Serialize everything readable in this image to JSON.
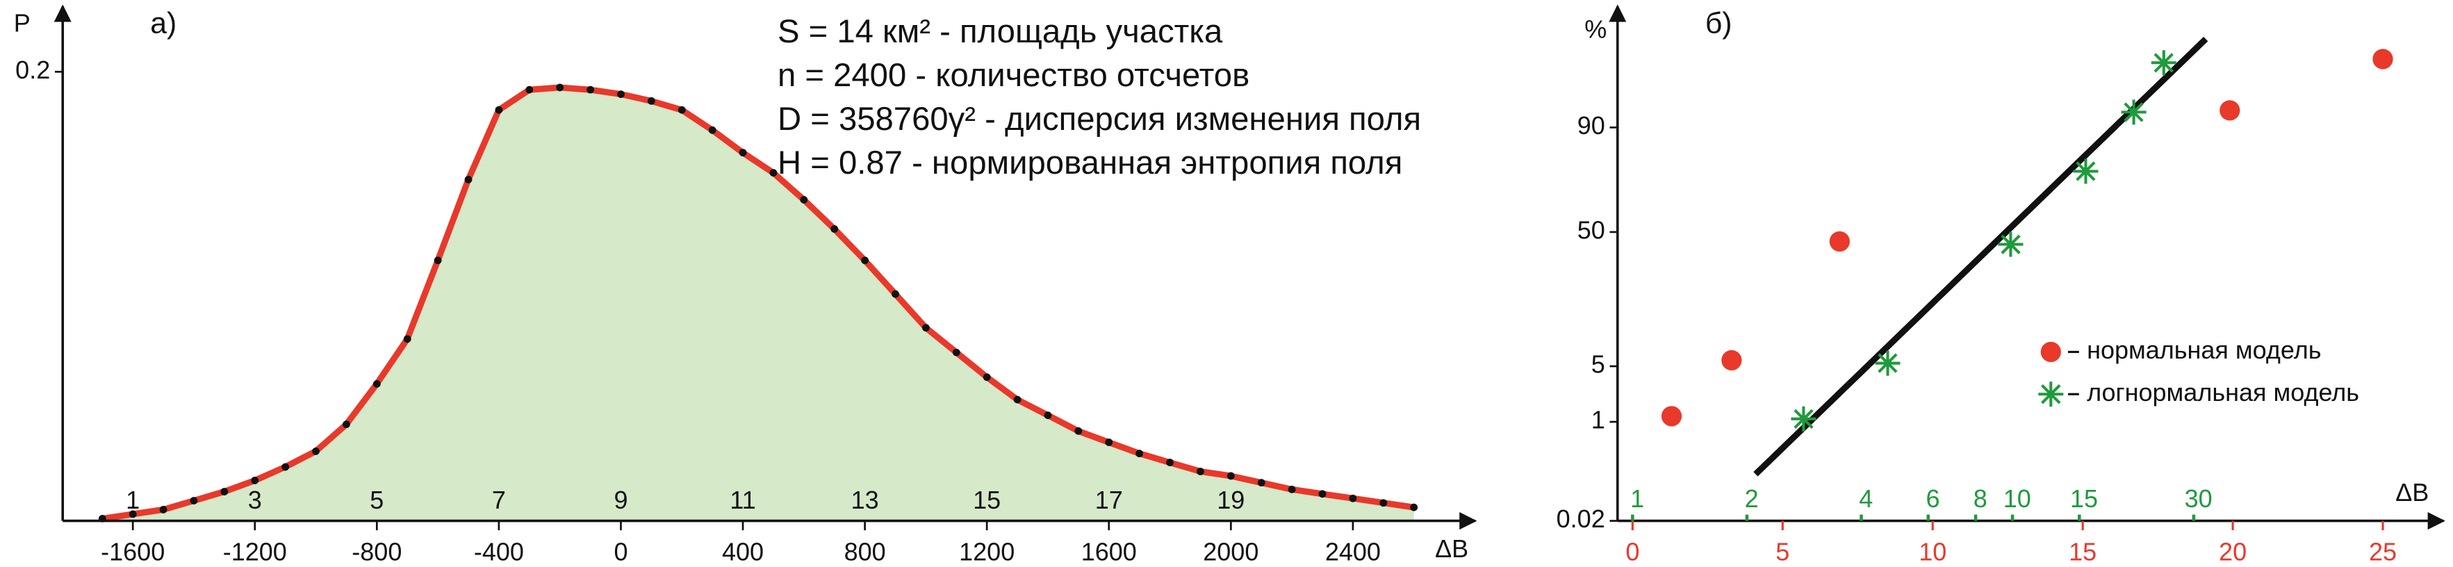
{
  "chart_data": [
    {
      "type": "area-line",
      "label": "а)",
      "ylabel": "P",
      "xlabel": "ΔB",
      "x": [
        -1700,
        -1600,
        -1500,
        -1400,
        -1300,
        -1200,
        -1100,
        -1000,
        -900,
        -800,
        -700,
        -600,
        -500,
        -400,
        -300,
        -200,
        -100,
        0,
        100,
        200,
        300,
        400,
        500,
        600,
        700,
        800,
        900,
        1000,
        1100,
        1200,
        1300,
        1400,
        1500,
        1600,
        1700,
        1800,
        1900,
        2000,
        2100,
        2200,
        2300,
        2400,
        2500,
        2600
      ],
      "series": [
        {
          "color": "#e8392b",
          "fill": "#d6e9c9",
          "values": [
            0.001,
            0.003,
            0.005,
            0.009,
            0.013,
            0.018,
            0.024,
            0.031,
            0.043,
            0.061,
            0.081,
            0.116,
            0.152,
            0.183,
            0.192,
            0.193,
            0.192,
            0.19,
            0.187,
            0.183,
            0.174,
            0.164,
            0.155,
            0.143,
            0.13,
            0.116,
            0.101,
            0.086,
            0.075,
            0.064,
            0.054,
            0.047,
            0.04,
            0.035,
            0.03,
            0.026,
            0.022,
            0.02,
            0.017,
            0.014,
            0.012,
            0.01,
            0.008,
            0.006
          ]
        }
      ],
      "xlim": [
        -1830,
        2760
      ],
      "ylim": [
        0,
        0.225
      ],
      "xticks": [
        -1600,
        -1200,
        -800,
        -400,
        0,
        400,
        800,
        1200,
        1600,
        2000,
        2400
      ],
      "yticks": [
        0.2
      ],
      "classes": [
        {
          "value": -1600,
          "label": "1"
        },
        {
          "value": -1200,
          "label": "3"
        },
        {
          "value": -800,
          "label": "5"
        },
        {
          "value": -400,
          "label": "7"
        },
        {
          "value": 0,
          "label": "9"
        },
        {
          "value": 400,
          "label": "11"
        },
        {
          "value": 800,
          "label": "13"
        },
        {
          "value": 1200,
          "label": "15"
        },
        {
          "value": 1600,
          "label": "17"
        },
        {
          "value": 2000,
          "label": "19"
        }
      ],
      "annotations": [
        "S = 14 км² - площадь участка",
        "n = 2400 - количество отсчетов",
        "D = 358760γ² - дисперсия изменения поля",
        "H = 0.87 - нормированная энтропия поля"
      ]
    },
    {
      "type": "scatter",
      "label": "б)",
      "ylabel": "%",
      "xlabel": "ΔB",
      "yscale": "probit",
      "xlim": [
        -0.5,
        26.5
      ],
      "ylim": [
        0.02,
        99.6
      ],
      "xticks": [
        0,
        5,
        10,
        15,
        20,
        25
      ],
      "xtick_color": "#e8392b",
      "yticks": [
        0.02,
        1,
        5,
        50,
        90
      ],
      "x2scale": "log",
      "x2lim": [
        1,
        124
      ],
      "x2ticks": [
        1,
        2,
        4,
        6,
        8,
        10,
        15,
        30
      ],
      "x2tick_color": "#1f9a3c",
      "series": [
        {
          "name": "нормальная модель",
          "marker": "circle",
          "color": "#e8392b",
          "x": [
            1.3,
            3.3,
            6.9,
            19.9,
            25
          ],
          "values": [
            1.2,
            5.8,
            45.4,
            93.2,
            98.3
          ]
        },
        {
          "name": "логнормальная модель",
          "marker": "star",
          "color": "#1f9a3c",
          "x": [
            5.7,
            8.5,
            12.6,
            15.1,
            16.7,
            17.7
          ],
          "values": [
            1.1,
            5.4,
            44,
            77.2,
            92.9,
            98.1
          ]
        }
      ],
      "fit_line": {
        "color": "#111111",
        "x": [
          4.1,
          19.1
        ],
        "values": [
          0.15,
          99.1
        ]
      }
    }
  ]
}
